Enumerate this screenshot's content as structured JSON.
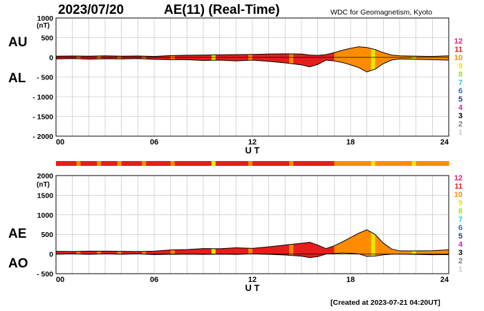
{
  "header": {
    "date": "2023/07/20",
    "title": "AE(11) (Real-Time)",
    "source": "WDC for Geomagnetism, Kyoto",
    "created": "[Created at 2023-07-21 04:20UT]"
  },
  "labels": {
    "au": "AU",
    "al": "AL",
    "ae": "AE",
    "ao": "AO",
    "unit": "(nT)"
  },
  "station_scale": {
    "items": [
      {
        "label": "12",
        "color": "#e0207a"
      },
      {
        "label": "11",
        "color": "#e81c1c"
      },
      {
        "label": "10",
        "color": "#ff8c00"
      },
      {
        "label": "9",
        "color": "#e8e800"
      },
      {
        "label": "8",
        "color": "#9be21c"
      },
      {
        "label": "7",
        "color": "#22c7d9"
      },
      {
        "label": "6",
        "color": "#1c6ee8"
      },
      {
        "label": "5",
        "color": "#2a2aa8"
      },
      {
        "label": "4",
        "color": "#d21cd2"
      },
      {
        "label": "3",
        "color": "#000000"
      },
      {
        "label": "2",
        "color": "#777777"
      },
      {
        "label": "1",
        "color": "#cccccc"
      }
    ]
  },
  "chart_data": [
    {
      "type": "area",
      "name": "AU/AL",
      "xlabel": "U T",
      "ylabel": "(nT)",
      "xlim": [
        0,
        24
      ],
      "ylim": [
        -2000,
        1000
      ],
      "x_ticks": [
        "00",
        "06",
        "12",
        "18",
        "24"
      ],
      "y_ticks": [
        "1000",
        "500",
        "0",
        "- 500",
        "- 1000",
        "- 1500",
        "- 2000"
      ],
      "grid": true,
      "x": [
        0,
        1,
        2,
        3,
        4,
        5,
        6,
        7,
        8,
        9,
        10,
        11,
        12,
        13,
        14,
        15,
        15.5,
        16,
        16.5,
        17,
        17.5,
        18,
        18.5,
        19,
        19.5,
        20,
        20.5,
        21,
        22,
        23,
        24
      ],
      "series": [
        {
          "name": "AU",
          "values": [
            30,
            35,
            30,
            40,
            30,
            35,
            25,
            45,
            55,
            60,
            65,
            70,
            75,
            85,
            90,
            85,
            60,
            50,
            70,
            120,
            180,
            230,
            270,
            250,
            200,
            120,
            60,
            40,
            30,
            25,
            40
          ]
        },
        {
          "name": "AL",
          "values": [
            -40,
            -30,
            -45,
            -35,
            -40,
            -30,
            -50,
            -60,
            -60,
            -80,
            -70,
            -90,
            -70,
            -100,
            -140,
            -190,
            -240,
            -180,
            -70,
            -90,
            -130,
            -190,
            -260,
            -370,
            -300,
            -160,
            -70,
            -40,
            -50,
            -60,
            -70
          ]
        }
      ]
    },
    {
      "type": "area",
      "name": "AE/AO",
      "xlabel": "U T",
      "ylabel": "(nT)",
      "xlim": [
        0,
        24
      ],
      "ylim": [
        -500,
        2000
      ],
      "x_ticks": [
        "00",
        "06",
        "12",
        "18",
        "24"
      ],
      "y_ticks": [
        "2000",
        "1500",
        "1000",
        "500",
        "0",
        "- 500"
      ],
      "grid": true,
      "x": [
        0,
        1,
        2,
        3,
        4,
        5,
        6,
        7,
        8,
        9,
        10,
        11,
        12,
        13,
        14,
        15,
        15.5,
        16,
        16.5,
        17,
        17.5,
        18,
        18.5,
        19,
        19.5,
        20,
        20.5,
        21,
        22,
        23,
        24
      ],
      "series": [
        {
          "name": "AE",
          "values": [
            70,
            65,
            75,
            75,
            70,
            65,
            75,
            105,
            115,
            140,
            135,
            160,
            145,
            185,
            230,
            275,
            300,
            230,
            140,
            210,
            310,
            420,
            530,
            620,
            500,
            280,
            130,
            80,
            80,
            85,
            110
          ]
        },
        {
          "name": "AO",
          "values": [
            -5,
            3,
            -8,
            3,
            -5,
            3,
            -13,
            -8,
            -3,
            -10,
            -3,
            -10,
            3,
            -8,
            -25,
            -53,
            -90,
            -65,
            0,
            15,
            25,
            20,
            5,
            -60,
            -50,
            -20,
            -5,
            0,
            -10,
            -18,
            -15
          ]
        }
      ]
    }
  ],
  "station_band": [
    11,
    11,
    11,
    11,
    11,
    10,
    11,
    11,
    11,
    11,
    10,
    11,
    11,
    11,
    11,
    10,
    11,
    11,
    11,
    11,
    11,
    10,
    11,
    11,
    11,
    11,
    11,
    11,
    10,
    11,
    11,
    11,
    11,
    11,
    11,
    11,
    11,
    11,
    9,
    11,
    11,
    11,
    11,
    11,
    11,
    11,
    11,
    10,
    11,
    11,
    11,
    11,
    11,
    11,
    11,
    11,
    11,
    10,
    11,
    11,
    11,
    11,
    11,
    11,
    11,
    11,
    11,
    11,
    10,
    10,
    10,
    10,
    10,
    10,
    10,
    10,
    10,
    9,
    10,
    10,
    10,
    10,
    10,
    10,
    10,
    10,
    10,
    9,
    10,
    10,
    10,
    10,
    10,
    10,
    10,
    10
  ]
}
